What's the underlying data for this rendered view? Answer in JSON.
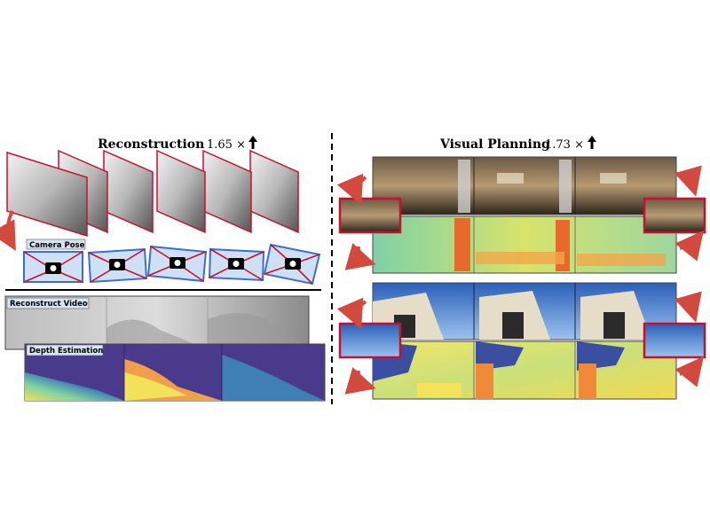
{
  "left_panel": {
    "title": "Reconstruction",
    "speedup": "1.65 ×",
    "labels": {
      "camera_pose": "Camera Pose",
      "reconstruct_video": "Reconstruct Video",
      "depth_estimation": "Depth Estimation"
    }
  },
  "right_panel": {
    "title": "Visual Planning",
    "speedup": "1.73 ×"
  },
  "colors": {
    "frame_red": "#c8102e",
    "camera_blue": "#3a6fd0",
    "arrow_red": "#d24a3e",
    "depth_purple": "#4a3a8c",
    "depth_yellow": "#e6e060"
  }
}
